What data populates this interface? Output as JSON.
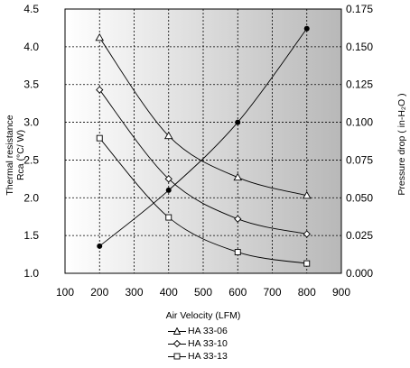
{
  "chart_data": {
    "type": "line",
    "xlabel": "Air Velocity (LFM)",
    "ylabel_left_line1": "Thermal resistance",
    "ylabel_left_line2": "Rca (°C/ W)",
    "ylabel_right": "Pressure drop ( in-H₂O )",
    "xlim": [
      100,
      900
    ],
    "xticks": [
      "100",
      "200",
      "300",
      "400",
      "500",
      "600",
      "700",
      "800",
      "900"
    ],
    "ylim_left": [
      1.0,
      4.5
    ],
    "yticks_left": [
      "1.0",
      "1.5",
      "2.0",
      "2.5",
      "3.0",
      "3.5",
      "4.0",
      "4.5"
    ],
    "ylim_right": [
      0.0,
      0.175
    ],
    "yticks_right": [
      "0.000",
      "0.025",
      "0.050",
      "0.075",
      "0.100",
      "0.125",
      "0.150",
      "0.175"
    ],
    "grid": true,
    "background_gradient": [
      "#ffffff",
      "#b8b8b8"
    ],
    "series": [
      {
        "name": "HA 33-06",
        "marker": "triangle",
        "axis": "left",
        "x": [
          200,
          400,
          600,
          800
        ],
        "y": [
          4.12,
          2.82,
          2.27,
          2.03
        ]
      },
      {
        "name": "HA 33-10",
        "marker": "diamond",
        "axis": "left",
        "x": [
          200,
          400,
          600,
          800
        ],
        "y": [
          3.43,
          2.25,
          1.72,
          1.52
        ]
      },
      {
        "name": "HA 33-13",
        "marker": "square",
        "axis": "left",
        "x": [
          200,
          400,
          600,
          800
        ],
        "y": [
          2.79,
          1.74,
          1.28,
          1.13
        ]
      },
      {
        "name": "",
        "marker": "dot",
        "axis": "right",
        "x": [
          200,
          400,
          600,
          800
        ],
        "y": [
          0.018,
          0.055,
          0.1,
          0.162
        ]
      }
    ],
    "legend_position": "bottom"
  }
}
